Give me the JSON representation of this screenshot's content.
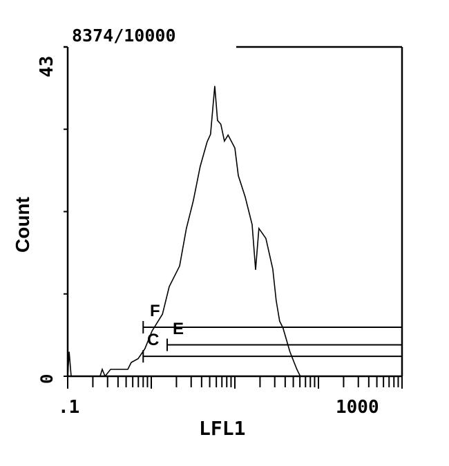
{
  "chart_data": {
    "type": "line",
    "title": "8374/10000",
    "xlabel": "LFL1",
    "ylabel": "Count",
    "x_scale": "log",
    "xlim": [
      0.1,
      1000
    ],
    "ylim": [
      0,
      43
    ],
    "x_tick_labels": [
      ".1",
      "1000"
    ],
    "y_tick_labels": [
      "0",
      "43"
    ],
    "grid": false,
    "line_color": "#000000",
    "series": [
      {
        "x": [
          0.1,
          0.104,
          0.11,
          0.244,
          0.259,
          0.28,
          0.326,
          0.524,
          0.576,
          0.697,
          0.84,
          1.02,
          1.36,
          1.64,
          2.18,
          2.63,
          3.18,
          3.85,
          4.65,
          5.12,
          5.75,
          6.2,
          6.8,
          7.5,
          8.3,
          10,
          11,
          13.3,
          16.1,
          17.7,
          19.4,
          23.5,
          28.4,
          31.2,
          34.3,
          37.7,
          45.6,
          55.2,
          60.6,
          1000
        ],
        "y": [
          0,
          3.2,
          0,
          0,
          0.9,
          0,
          0.9,
          0.9,
          1.8,
          2.3,
          3.6,
          5.9,
          8.1,
          11.7,
          14.4,
          19.3,
          22.9,
          27.4,
          30.6,
          31.6,
          37.9,
          33.4,
          32.9,
          30.7,
          31.5,
          29.8,
          26.2,
          23.4,
          19.8,
          13.9,
          19.3,
          18.0,
          14.0,
          9.9,
          7.2,
          6.3,
          3.2,
          0.9,
          0,
          0
        ]
      }
    ],
    "markers": [
      {
        "label": "E",
        "range": [
          0.8,
          1000
        ],
        "level": 6.4
      },
      {
        "label": "C",
        "range": [
          1.55,
          1000
        ],
        "level": 4.1
      },
      {
        "label": "F",
        "range": [
          0.8,
          1000
        ],
        "level": 2.6
      }
    ]
  }
}
